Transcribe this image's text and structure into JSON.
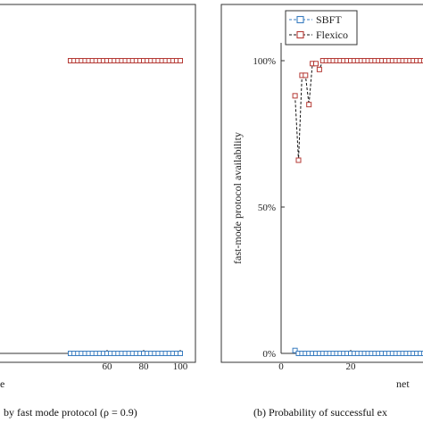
{
  "chart_data": [
    {
      "type": "line",
      "xlabel": "e",
      "ylabel": "",
      "xlim": [
        40,
        102
      ],
      "ylim": [
        0,
        1.1
      ],
      "x_ticks": [
        60,
        80,
        100
      ],
      "caption": "by fast mode protocol (ρ = 0.9)",
      "series": [
        {
          "name": "SBFT",
          "color": "#3a7dc0",
          "x": [
            40,
            42,
            44,
            46,
            48,
            50,
            52,
            54,
            56,
            58,
            60,
            62,
            64,
            66,
            68,
            70,
            72,
            74,
            76,
            78,
            80,
            82,
            84,
            86,
            88,
            90,
            92,
            94,
            96,
            98,
            100
          ],
          "y": [
            0,
            0,
            0,
            0,
            0,
            0,
            0,
            0,
            0,
            0,
            0,
            0,
            0,
            0,
            0,
            0,
            0,
            0,
            0,
            0,
            0,
            0,
            0,
            0,
            0,
            0,
            0,
            0,
            0,
            0,
            0
          ]
        },
        {
          "name": "Flexico",
          "color": "#b53a35",
          "x": [
            40,
            42,
            44,
            46,
            48,
            50,
            52,
            54,
            56,
            58,
            60,
            62,
            64,
            66,
            68,
            70,
            72,
            74,
            76,
            78,
            80,
            82,
            84,
            86,
            88,
            90,
            92,
            94,
            96,
            98,
            100
          ],
          "y": [
            1,
            1,
            1,
            1,
            1,
            1,
            1,
            1,
            1,
            1,
            1,
            1,
            1,
            1,
            1,
            1,
            1,
            1,
            1,
            1,
            1,
            1,
            1,
            1,
            1,
            1,
            1,
            1,
            1,
            1,
            1
          ]
        }
      ]
    },
    {
      "type": "line",
      "xlabel": "net",
      "ylabel": "fast-mode protocol availability",
      "xlim": [
        0,
        47
      ],
      "ylim": [
        0,
        1.1
      ],
      "x_ticks": [
        0,
        20
      ],
      "y_ticks": [
        0,
        0.5,
        1.0
      ],
      "y_tick_labels": [
        "0%",
        "50%",
        "100%"
      ],
      "caption": "(b) Probability of successful ex",
      "legend_position": "top-left",
      "series": [
        {
          "name": "SBFT",
          "color": "#3a7dc0",
          "x": [
            4,
            5,
            6,
            7,
            8,
            9,
            10,
            11,
            12,
            13,
            14,
            15,
            16,
            17,
            18,
            19,
            20,
            21,
            22,
            23,
            24,
            25,
            26,
            27,
            28,
            29,
            30,
            31,
            32,
            33,
            34,
            35,
            36,
            37,
            38,
            39,
            40,
            41,
            42,
            43,
            44,
            45,
            46
          ],
          "y": [
            0.01,
            0,
            0,
            0,
            0,
            0,
            0,
            0,
            0,
            0,
            0,
            0,
            0,
            0,
            0,
            0,
            0,
            0,
            0,
            0,
            0,
            0,
            0,
            0,
            0,
            0,
            0,
            0,
            0,
            0,
            0,
            0,
            0,
            0,
            0,
            0,
            0,
            0,
            0,
            0,
            0,
            0,
            0
          ]
        },
        {
          "name": "Flexico",
          "color": "#b53a35",
          "x": [
            4,
            5,
            6,
            7,
            8,
            9,
            10,
            11,
            12,
            13,
            14,
            15,
            16,
            17,
            18,
            19,
            20,
            21,
            22,
            23,
            24,
            25,
            26,
            27,
            28,
            29,
            30,
            31,
            32,
            33,
            34,
            35,
            36,
            37,
            38,
            39,
            40,
            41,
            42,
            43,
            44,
            45,
            46
          ],
          "y": [
            0.88,
            0.66,
            0.95,
            0.95,
            0.85,
            0.99,
            0.99,
            0.97,
            1,
            1,
            1,
            1,
            1,
            1,
            1,
            1,
            1,
            1,
            1,
            1,
            1,
            1,
            1,
            1,
            1,
            1,
            1,
            1,
            1,
            1,
            1,
            1,
            1,
            1,
            1,
            1,
            1,
            1,
            1,
            1,
            1,
            1,
            1
          ]
        }
      ]
    }
  ]
}
